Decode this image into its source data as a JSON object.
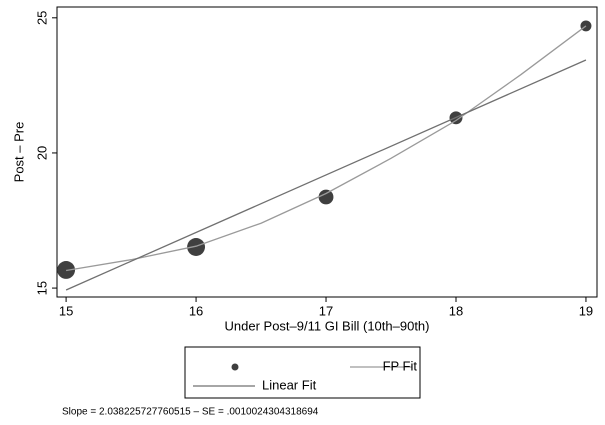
{
  "chart_data": {
    "type": "scatter",
    "x_label": "Under Post–9/11 GI Bill (10th–90th)",
    "y_label": "Post – Pre",
    "note": "Slope = 2.038225727760515 – SE = .0010024304318694",
    "xlim": [
      14.93,
      19.085
    ],
    "ylim": [
      14.67,
      25.4
    ],
    "xticks": [
      15,
      16,
      17,
      18,
      19
    ],
    "yticks": [
      15,
      20,
      25
    ],
    "series": [
      {
        "type": "scatter",
        "color": "#3f3f3f",
        "x": [
          15,
          16,
          17,
          18,
          19
        ],
        "values": [
          15.67,
          16.52,
          18.37,
          21.3,
          24.7
        ],
        "sizes": [
          80,
          80,
          55,
          42,
          30
        ]
      },
      {
        "name": "FP Fit",
        "type": "line",
        "color": "#9a9a9a",
        "x": [
          15,
          15.5,
          16,
          16.5,
          17,
          17.5,
          18,
          18.5,
          19
        ],
        "values": [
          15.65,
          16.05,
          16.55,
          17.4,
          18.5,
          19.8,
          21.2,
          22.9,
          24.7
        ]
      },
      {
        "name": "Linear Fit",
        "type": "line",
        "color": "#707070",
        "x": [
          15,
          19
        ],
        "values": [
          14.93,
          23.44
        ]
      }
    ]
  }
}
